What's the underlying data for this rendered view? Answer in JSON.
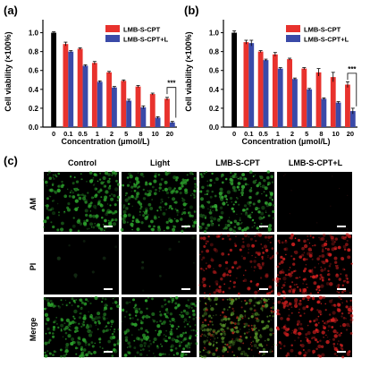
{
  "chart_data": [
    {
      "panel": "(a)",
      "type": "bar",
      "xlabel": "Concentration (μmol/L)",
      "ylabel": "Cell viability (×100%)",
      "ylim": [
        0,
        1.1
      ],
      "yticks": [
        "0.0",
        "0.2",
        "0.4",
        "0.6",
        "0.8",
        "1.0"
      ],
      "legend_position": "top-right",
      "control": {
        "category": "0",
        "value": 1.0,
        "error": 0.01,
        "color": "#000000"
      },
      "categories": [
        "0.1",
        "0.5",
        "1",
        "2",
        "5",
        "8",
        "10",
        "20"
      ],
      "series": [
        {
          "name": "LMB-S-CPT",
          "color": "#e8322d",
          "values": [
            0.88,
            0.83,
            0.68,
            0.58,
            0.49,
            0.43,
            0.35,
            0.3
          ],
          "errors": [
            0.02,
            0.01,
            0.015,
            0.01,
            0.01,
            0.01,
            0.01,
            0.015
          ]
        },
        {
          "name": "LMB-S-CPT+L",
          "color": "#3a4aa8",
          "values": [
            0.8,
            0.65,
            0.48,
            0.42,
            0.28,
            0.21,
            0.1,
            0.05
          ],
          "errors": [
            0.01,
            0.01,
            0.01,
            0.01,
            0.015,
            0.015,
            0.01,
            0.01
          ]
        }
      ],
      "annotation": "***"
    },
    {
      "panel": "(b)",
      "type": "bar",
      "xlabel": "Concentration (μmol/L)",
      "ylabel": "Cell viability (×100%)",
      "ylim": [
        0,
        1.1
      ],
      "yticks": [
        "0.0",
        "0.2",
        "0.4",
        "0.6",
        "0.8",
        "1.0"
      ],
      "legend_position": "top-right",
      "control": {
        "category": "0",
        "value": 1.0,
        "error": 0.02,
        "color": "#000000"
      },
      "categories": [
        "0.1",
        "0.5",
        "1",
        "2",
        "5",
        "8",
        "10",
        "20"
      ],
      "series": [
        {
          "name": "LMB-S-CPT",
          "color": "#e8322d",
          "values": [
            0.9,
            0.8,
            0.77,
            0.72,
            0.62,
            0.58,
            0.53,
            0.45
          ],
          "errors": [
            0.02,
            0.01,
            0.02,
            0.01,
            0.01,
            0.04,
            0.05,
            0.03
          ]
        },
        {
          "name": "LMB-S-CPT+L",
          "color": "#3a4aa8",
          "values": [
            0.89,
            0.71,
            0.62,
            0.51,
            0.4,
            0.3,
            0.26,
            0.17
          ],
          "errors": [
            0.03,
            0.01,
            0.01,
            0.01,
            0.01,
            0.01,
            0.01,
            0.03
          ]
        }
      ],
      "annotation": "***"
    }
  ],
  "panel_c": {
    "label": "(c)",
    "columns": [
      "Control",
      "Light",
      "LMB-S-CPT",
      "LMB-S-CPT+L"
    ],
    "rows": [
      "AM",
      "PI",
      "Merge"
    ],
    "cells": [
      [
        {
          "color": "#2ea82e",
          "intensity": 0.85
        },
        {
          "color": "#2ea82e",
          "intensity": 0.85
        },
        {
          "color": "#35b035",
          "intensity": 0.9
        },
        {
          "color": "#000000",
          "intensity": 0.0
        }
      ],
      [
        {
          "color": "#000000",
          "intensity": 0.03
        },
        {
          "color": "#000000",
          "intensity": 0.03
        },
        {
          "color": "#c81e1e",
          "intensity": 0.6
        },
        {
          "color": "#d42020",
          "intensity": 0.85
        }
      ],
      [
        {
          "color": "#2ea82e",
          "intensity": 0.85
        },
        {
          "color": "#2ea82e",
          "intensity": 0.85
        },
        {
          "color": "#5a9a2a",
          "intensity": 0.85
        },
        {
          "color": "#d42020",
          "intensity": 0.85
        }
      ]
    ]
  }
}
